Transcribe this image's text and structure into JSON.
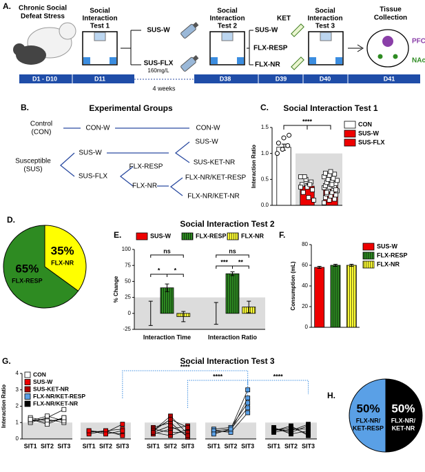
{
  "panel_a": {
    "label": "A.",
    "stress": [
      "Chronic Social",
      "Defeat Stress"
    ],
    "test1": [
      "Social",
      "Interaction",
      "Test 1"
    ],
    "branch1": [
      "SUS-W",
      "SUS-FLX"
    ],
    "dose": "160mg/L",
    "test2": [
      "Social",
      "Interaction",
      "Test 2"
    ],
    "branch2": [
      "SUS-W",
      "FLX-RESP",
      "FLX-NR"
    ],
    "ket": "KET",
    "test3": [
      "Social",
      "Interaction",
      "Test 3"
    ],
    "tissue": [
      "Tissue",
      "Collection"
    ],
    "regions": [
      "PFC",
      "NAc"
    ],
    "duration": "4 weeks",
    "timeline": [
      "D1  - D10",
      "D11",
      "D38",
      "D39",
      "D40",
      "D41"
    ]
  },
  "panel_b": {
    "label": "B.",
    "title": "Experimental Groups",
    "control": [
      "Control",
      "(CON)"
    ],
    "susceptible": [
      "Susceptible",
      "(SUS)"
    ],
    "nodes": [
      "CON-W",
      "CON-W",
      "SUS-W",
      "SUS-W",
      "SUS-KET-NR",
      "SUS-FLX",
      "FLX-RESP",
      "FLX-NR",
      "FLX-NR/KET-RESP",
      "FLX-NR/KET-NR"
    ]
  },
  "chart_data": [
    {
      "type": "bar",
      "label": "C.",
      "title": "Social Interaction Test 1",
      "ylabel": "Interaction Ratio",
      "categories": [
        "CON",
        "SUS-W",
        "SUS-FLX"
      ],
      "values": [
        1.12,
        0.37,
        0.36
      ],
      "errors": [
        0.06,
        0.05,
        0.02
      ],
      "colors": [
        "#ffffff",
        "#ee0000",
        "#ee0000"
      ],
      "points": [
        [
          1.0,
          1.08,
          1.15,
          1.2,
          1.3,
          1.35
        ],
        [
          0.55,
          0.5,
          0.45,
          0.4,
          0.35,
          0.3,
          0.25,
          0.15,
          0.1,
          0.55,
          0.4,
          0.35
        ],
        [
          0.05,
          0.1,
          0.12,
          0.15,
          0.18,
          0.2,
          0.22,
          0.25,
          0.28,
          0.3,
          0.32,
          0.34,
          0.35,
          0.36,
          0.38,
          0.4,
          0.42,
          0.44,
          0.46,
          0.48,
          0.5,
          0.52,
          0.55,
          0.58,
          0.6,
          0.62,
          0.65,
          0.3,
          0.25,
          0.4
        ]
      ],
      "ylim": [
        0,
        1.5
      ],
      "yticks": [
        {
          "value": 0,
          "label": "0.0"
        },
        0.5,
        {
          "value": 1,
          "label": "1.0"
        },
        1.5
      ],
      "shade": [
        0,
        1
      ],
      "annotations": [
        "****"
      ]
    },
    {
      "type": "pie",
      "label": "D.",
      "categories": [
        "FLX-NR",
        "FLX-RESP"
      ],
      "values": [
        35,
        65
      ],
      "value_labels": [
        "35%",
        "65%"
      ],
      "colors": [
        "#ffff00",
        "#2e8b22"
      ]
    },
    {
      "type": "bar",
      "label": "E.",
      "title": "Social Interaction Test 2",
      "ylabel": "% Change",
      "categories": [
        "Interaction Time",
        "Interaction Ratio"
      ],
      "series": [
        {
          "name": "SUS-W",
          "color": "#ee0000",
          "striped": false,
          "values": [
            0,
            0
          ],
          "errors": [
            19,
            17
          ]
        },
        {
          "name": "FLX-RESP",
          "color": "#2e8b22",
          "striped": true,
          "values": [
            40,
            62
          ],
          "errors": [
            6,
            3
          ]
        },
        {
          "name": "FLX-NR",
          "color": "#ffff33",
          "striped": true,
          "values": [
            -5,
            10
          ],
          "errors": [
            8,
            9
          ]
        }
      ],
      "ylim": [
        -25,
        100
      ],
      "yticks": [
        -25,
        0,
        25,
        50,
        75,
        100
      ],
      "shade": [
        -25,
        25
      ],
      "annotations": [
        "ns",
        "*",
        "*",
        "ns",
        "***",
        "**"
      ]
    },
    {
      "type": "bar",
      "label": "F.",
      "ylabel": "Consumption (mL)",
      "categories": [
        "SUS-W",
        "FLX-RESP",
        "FLX-NR"
      ],
      "values": [
        58,
        60,
        60
      ],
      "errors": [
        1,
        1,
        1
      ],
      "colors": [
        "#ee0000",
        "#2e8b22",
        "#ffff33"
      ],
      "striped": [
        false,
        true,
        true
      ],
      "ylim": [
        0,
        80
      ],
      "yticks": [
        0,
        20,
        40,
        60,
        80
      ]
    },
    {
      "type": "line",
      "label": "G.",
      "title": "Social Interaction Test 3",
      "ylabel": "Interaction Ratio",
      "categories": [
        "SIT1",
        "SIT2",
        "SIT3"
      ],
      "groups": [
        {
          "name": "CON",
          "color": "#ffffff",
          "subjects": [
            [
              1.1,
              1.2,
              1.0
            ],
            [
              1.2,
              1.0,
              1.3
            ],
            [
              1.0,
              1.3,
              1.8
            ],
            [
              1.3,
              1.1,
              1.2
            ],
            [
              1.1,
              1.4,
              1.1
            ],
            [
              1.2,
              0.9,
              1.3
            ]
          ]
        },
        {
          "name": "SUS-W",
          "color": "#ee0000",
          "subjects": [
            [
              0.5,
              0.4,
              0.3
            ],
            [
              0.4,
              0.5,
              0.6
            ],
            [
              0.5,
              0.4,
              0.9
            ],
            [
              0.3,
              0.5,
              0.2
            ],
            [
              0.5,
              0.3,
              0.5
            ]
          ]
        },
        {
          "name": "SUS-KET-NR",
          "color": "#b00000",
          "subjects": [
            [
              0.5,
              1.4,
              0.3
            ],
            [
              0.4,
              0.2,
              0.6
            ],
            [
              0.7,
              1.0,
              0.1
            ],
            [
              0.3,
              0.6,
              0.8
            ],
            [
              0.6,
              0.4,
              0.4
            ],
            [
              0.5,
              1.2,
              0.7
            ],
            [
              0.4,
              0.8,
              0.2
            ]
          ]
        },
        {
          "name": "FLX-NR/KET-RESP",
          "color": "#5aa0e6",
          "subjects": [
            [
              0.5,
              0.6,
              3.0
            ],
            [
              0.4,
              0.5,
              2.5
            ],
            [
              0.6,
              0.7,
              2.2
            ],
            [
              0.5,
              0.4,
              1.6
            ],
            [
              0.3,
              0.6,
              1.9
            ]
          ]
        },
        {
          "name": "FLX-NR/KET-NR",
          "color": "#000000",
          "subjects": [
            [
              0.6,
              0.5,
              0.9
            ],
            [
              0.5,
              0.7,
              0.3
            ],
            [
              0.4,
              0.6,
              0.6
            ],
            [
              0.7,
              0.3,
              0.5
            ],
            [
              0.5,
              0.8,
              0.2
            ],
            [
              0.6,
              0.4,
              0.8
            ]
          ]
        }
      ],
      "ylim": [
        0,
        4
      ],
      "yticks": [
        0,
        1,
        2,
        3,
        4
      ],
      "shade": [
        0,
        1
      ],
      "annotations": [
        "****",
        "****",
        "****"
      ]
    },
    {
      "type": "pie",
      "label": "H.",
      "categories": [
        [
          "FLX-NR/",
          "KET-NR"
        ],
        [
          "FLX-NR/",
          "KET-RESP"
        ]
      ],
      "values": [
        50,
        50
      ],
      "value_labels": [
        "50%",
        "50%"
      ],
      "colors": [
        "#000000",
        "#5aa0e6"
      ]
    }
  ]
}
